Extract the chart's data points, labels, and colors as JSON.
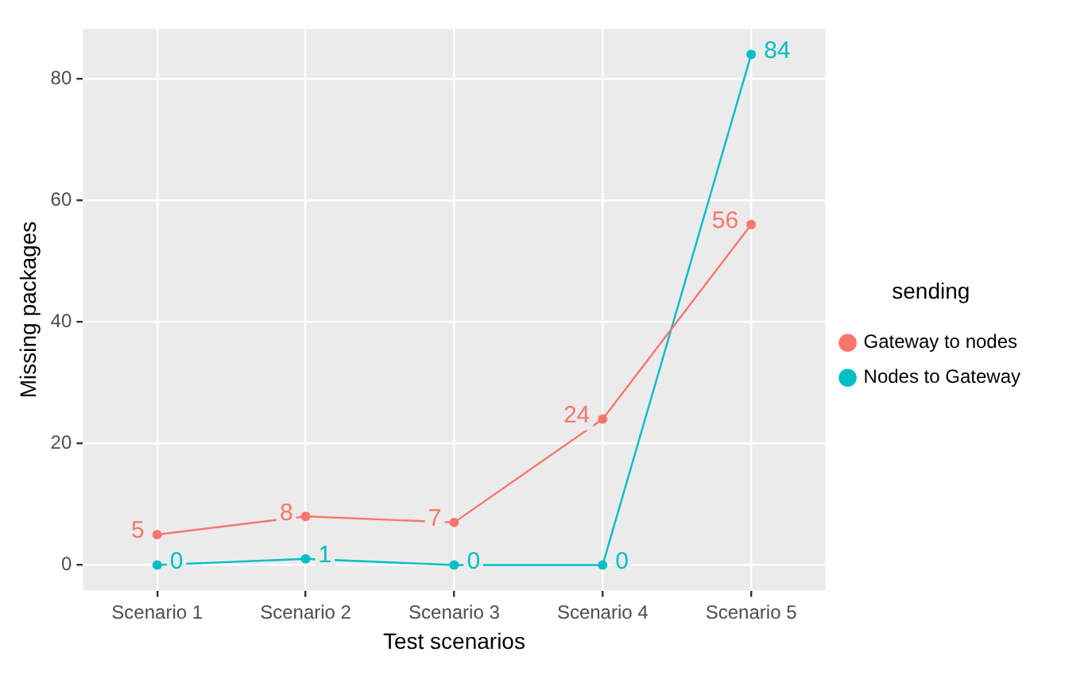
{
  "chart_data": {
    "type": "line",
    "xlabel": "Test scenarios",
    "ylabel": "Missing packages",
    "legend_title": "sending",
    "categories": [
      "Scenario 1",
      "Scenario 2",
      "Scenario 3",
      "Scenario 4",
      "Scenario 5"
    ],
    "series": [
      {
        "name": "Gateway to nodes",
        "color": "#f8766d",
        "values": [
          5,
          8,
          7,
          24,
          56
        ]
      },
      {
        "name": "Nodes to Gateway",
        "color": "#00bfc4",
        "values": [
          0,
          1,
          0,
          0,
          84
        ]
      }
    ],
    "ylim": [
      -4.2,
      88.2
    ],
    "yticks": [
      0,
      20,
      40,
      60,
      80
    ],
    "grid": true,
    "legend": "right",
    "marker": "circle",
    "line_style": "solid",
    "data_labels": true
  }
}
